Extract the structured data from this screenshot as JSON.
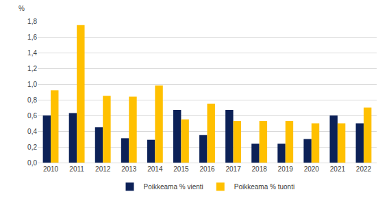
{
  "chart_data": {
    "type": "bar",
    "y_label": "%",
    "categories": [
      "2010",
      "2011",
      "2012",
      "2013",
      "2014",
      "2015",
      "2016",
      "2017",
      "2018",
      "2019",
      "2020",
      "2021",
      "2022"
    ],
    "series": [
      {
        "name": "Poikkeama % vienti",
        "color": "#0c2157",
        "values": [
          0.6,
          0.63,
          0.45,
          0.31,
          0.29,
          0.67,
          0.35,
          0.67,
          0.24,
          0.24,
          0.3,
          0.6,
          0.5
        ]
      },
      {
        "name": "Poikkeama % tuonti",
        "color": "#ffc000",
        "values": [
          0.92,
          1.75,
          0.85,
          0.84,
          0.98,
          0.55,
          0.75,
          0.53,
          0.53,
          0.53,
          0.5,
          0.5,
          0.7
        ]
      }
    ],
    "ylim": [
      0,
      1.8
    ],
    "yticks": [
      {
        "value": 0,
        "label": "0,0"
      },
      {
        "value": 0.2,
        "label": "0,2"
      },
      {
        "value": 0.4,
        "label": "0,4"
      },
      {
        "value": 0.6,
        "label": "0,6"
      },
      {
        "value": 0.8,
        "label": "0,8"
      },
      {
        "value": 1.0,
        "label": "1,0"
      },
      {
        "value": 1.2,
        "label": "1,2"
      },
      {
        "value": 1.4,
        "label": "1,4"
      },
      {
        "value": 1.6,
        "label": "1,6"
      },
      {
        "value": 1.8,
        "label": "1,8"
      }
    ],
    "grid": true,
    "legend": "bottom"
  }
}
